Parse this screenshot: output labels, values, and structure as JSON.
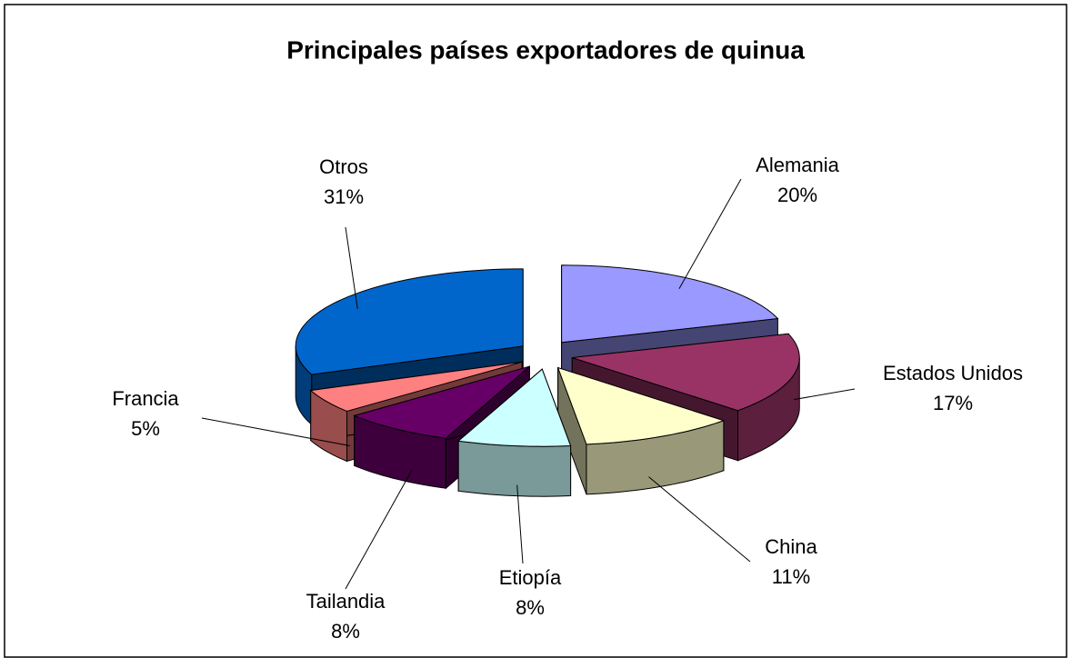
{
  "chart_data": {
    "type": "pie3d",
    "title": "Principales países exportadores de quinua",
    "categories": [
      "Alemania",
      "Estados Unidos",
      "China",
      "Etiopía",
      "Tailandia",
      "Francia",
      "Otros"
    ],
    "values": [
      20,
      17,
      11,
      8,
      8,
      5,
      31
    ],
    "value_labels": [
      "20%",
      "17%",
      "11%",
      "8%",
      "8%",
      "5%",
      "31%"
    ],
    "colors": [
      "#9999FF",
      "#993366",
      "#FFFFCC",
      "#CCFFFF",
      "#660066",
      "#FF8080",
      "#0066CC"
    ]
  }
}
